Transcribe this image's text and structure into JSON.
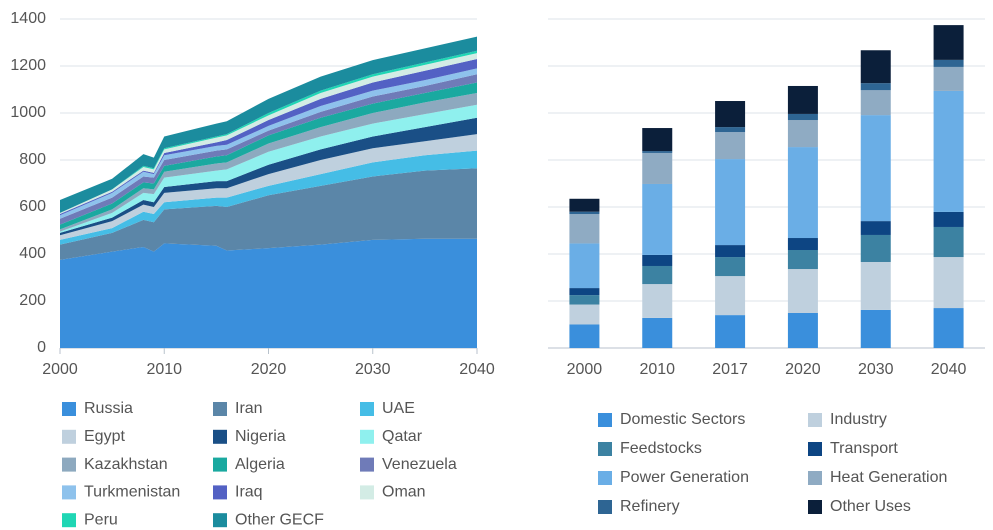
{
  "chart_data": [
    {
      "type": "stacked_area",
      "x": [
        2000,
        2005,
        2008,
        2009,
        2010,
        2015,
        2016,
        2020,
        2025,
        2030,
        2035,
        2040
      ],
      "xlim": [
        2000,
        2040
      ],
      "xticks": [
        2000,
        2010,
        2020,
        2030,
        2040
      ],
      "ylim": [
        0,
        1400
      ],
      "yticks": [
        0,
        200,
        400,
        600,
        800,
        1000,
        1200,
        1400
      ],
      "grid": true,
      "series": [
        {
          "name": "Russia",
          "color": "#3a8fdc",
          "values": [
            375,
            410,
            430,
            410,
            445,
            435,
            415,
            425,
            440,
            460,
            465,
            465
          ]
        },
        {
          "name": "Iran",
          "color": "#5b86a8",
          "values": [
            65,
            80,
            115,
            125,
            145,
            170,
            185,
            225,
            250,
            270,
            290,
            300
          ]
        },
        {
          "name": "UAE",
          "color": "#45bde6",
          "values": [
            20,
            20,
            35,
            35,
            30,
            35,
            40,
            40,
            50,
            60,
            65,
            75
          ]
        },
        {
          "name": "Egypt",
          "color": "#bfd0de",
          "values": [
            20,
            30,
            30,
            30,
            40,
            40,
            40,
            50,
            60,
            60,
            60,
            70
          ]
        },
        {
          "name": "Nigeria",
          "color": "#1a4f86",
          "values": [
            10,
            15,
            20,
            20,
            25,
            30,
            30,
            40,
            45,
            50,
            60,
            70
          ]
        },
        {
          "name": "Qatar",
          "color": "#8ff0ee",
          "values": [
            5,
            20,
            30,
            35,
            40,
            45,
            50,
            55,
            55,
            55,
            55,
            55
          ]
        },
        {
          "name": "Kazakhstan",
          "color": "#8da9bf",
          "values": [
            10,
            15,
            20,
            20,
            25,
            30,
            30,
            35,
            40,
            45,
            50,
            50
          ]
        },
        {
          "name": "Algeria",
          "color": "#1aa9a0",
          "values": [
            20,
            25,
            25,
            25,
            25,
            30,
            30,
            35,
            40,
            40,
            40,
            45
          ]
        },
        {
          "name": "Venezuela",
          "color": "#6f7bb8",
          "values": [
            25,
            25,
            25,
            25,
            25,
            25,
            25,
            20,
            25,
            30,
            30,
            35
          ]
        },
        {
          "name": "Turkmenistan",
          "color": "#8ec2ec",
          "values": [
            15,
            20,
            20,
            15,
            20,
            20,
            20,
            20,
            25,
            25,
            25,
            25
          ]
        },
        {
          "name": "Iraq",
          "color": "#5361c4",
          "values": [
            5,
            5,
            5,
            5,
            10,
            15,
            20,
            25,
            30,
            35,
            40,
            40
          ]
        },
        {
          "name": "Oman",
          "color": "#d3ece5",
          "values": [
            5,
            10,
            15,
            15,
            15,
            20,
            20,
            20,
            25,
            25,
            25,
            25
          ]
        },
        {
          "name": "Peru",
          "color": "#1fd6b4",
          "values": [
            0,
            0,
            5,
            5,
            5,
            5,
            5,
            10,
            10,
            10,
            10,
            10
          ]
        },
        {
          "name": "Other GECF",
          "color": "#1b8c9e",
          "values": [
            55,
            45,
            50,
            45,
            50,
            55,
            55,
            60,
            60,
            60,
            60,
            60
          ]
        }
      ]
    },
    {
      "type": "stacked_bar",
      "categories": [
        "2000",
        "2010",
        "2017",
        "2020",
        "2030",
        "2040"
      ],
      "ylim": [
        0,
        1400
      ],
      "yticks": [
        0,
        200,
        400,
        600,
        800,
        1000,
        1200,
        1400
      ],
      "grid": true,
      "series": [
        {
          "name": "Domestic Sectors",
          "color": "#3a8fdc",
          "values": [
            100,
            128,
            140,
            149,
            162,
            170
          ]
        },
        {
          "name": "Industry",
          "color": "#bfd0de",
          "values": [
            85,
            144,
            166,
            187,
            204,
            217
          ]
        },
        {
          "name": "Feedstocks",
          "color": "#3c82a2",
          "values": [
            40,
            77,
            81,
            81,
            115,
            128
          ]
        },
        {
          "name": "Transport",
          "color": "#0d4583",
          "values": [
            30,
            47,
            51,
            51,
            59,
            64
          ]
        },
        {
          "name": "Power Generation",
          "color": "#6aaee6",
          "values": [
            190,
            302,
            366,
            387,
            451,
            515
          ]
        },
        {
          "name": "Heat Generation",
          "color": "#8fabc3",
          "values": [
            125,
            132,
            115,
            115,
            106,
            102
          ]
        },
        {
          "name": "Refinery",
          "color": "#2e6593",
          "values": [
            10,
            8,
            21,
            26,
            30,
            30
          ]
        },
        {
          "name": "Other Uses",
          "color": "#0b1f3a",
          "values": [
            55,
            98,
            111,
            119,
            140,
            148
          ]
        }
      ]
    }
  ]
}
